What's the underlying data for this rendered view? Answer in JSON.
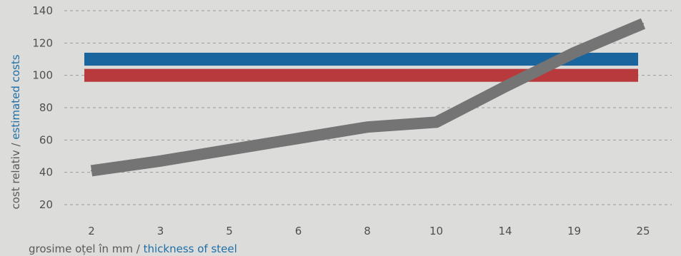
{
  "chart_data": {
    "type": "line",
    "categories": [
      "2",
      "3",
      "5",
      "6",
      "8",
      "10",
      "14",
      "19",
      "25"
    ],
    "series": [
      {
        "name": "",
        "values": [
          41,
          47,
          54,
          61,
          68,
          71,
          93,
          114,
          132
        ],
        "color": "#747474"
      }
    ],
    "bands": [
      {
        "from": 106,
        "to": 114,
        "color": "#1a659e"
      },
      {
        "from": 96,
        "to": 104,
        "color": "#b93a3d"
      }
    ],
    "y_ticks": [
      20,
      40,
      60,
      80,
      100,
      120,
      140
    ],
    "ylim": [
      15,
      142
    ],
    "grid": true,
    "ylabel": {
      "primary": "cost relativ",
      "separator": " / ",
      "secondary": "estimated costs"
    },
    "xlabel": {
      "primary": "grosime oțel în mm",
      "separator": " / ",
      "secondary": "thickness of steel"
    },
    "colors": {
      "primary_label": "#5a5a5a",
      "secondary_label": "#1f6fa6",
      "grid": "#9a9a9a",
      "background": "#dcdcda"
    }
  }
}
